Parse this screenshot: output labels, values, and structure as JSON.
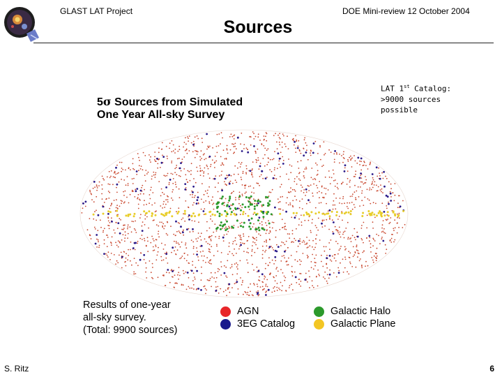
{
  "header": {
    "project": "GLAST LAT Project",
    "review": "DOE Mini-review 12 October 2004",
    "title": "Sources"
  },
  "note": {
    "line1_prefix": "LAT 1",
    "line1_sup": "st",
    "line1_suffix": " Catalog:",
    "line2": ">9000 sources",
    "line3": "possible"
  },
  "figure": {
    "title_prefix": "5",
    "title_sigma": "σ",
    "title_rest": " Sources from Simulated",
    "title_line2": "One Year All-sky Survey",
    "caption": [
      "Results of one-year",
      "all-sky survey.",
      "(Total: 9900 sources)"
    ],
    "legend": [
      {
        "label": "AGN",
        "color": "#e8262a"
      },
      {
        "label": "3EG Catalog",
        "color": "#1a1a8c"
      },
      {
        "label": "Galactic Halo",
        "color": "#2c9a2c"
      },
      {
        "label": "Galactic Plane",
        "color": "#f3c623"
      }
    ]
  },
  "footer": {
    "author": "S. Ritz",
    "page": "6"
  },
  "colors": {
    "agn": "#c9482f",
    "egret": "#2a1a8a",
    "halo": "#2c9a2c",
    "plane": "#e8cd2a"
  }
}
